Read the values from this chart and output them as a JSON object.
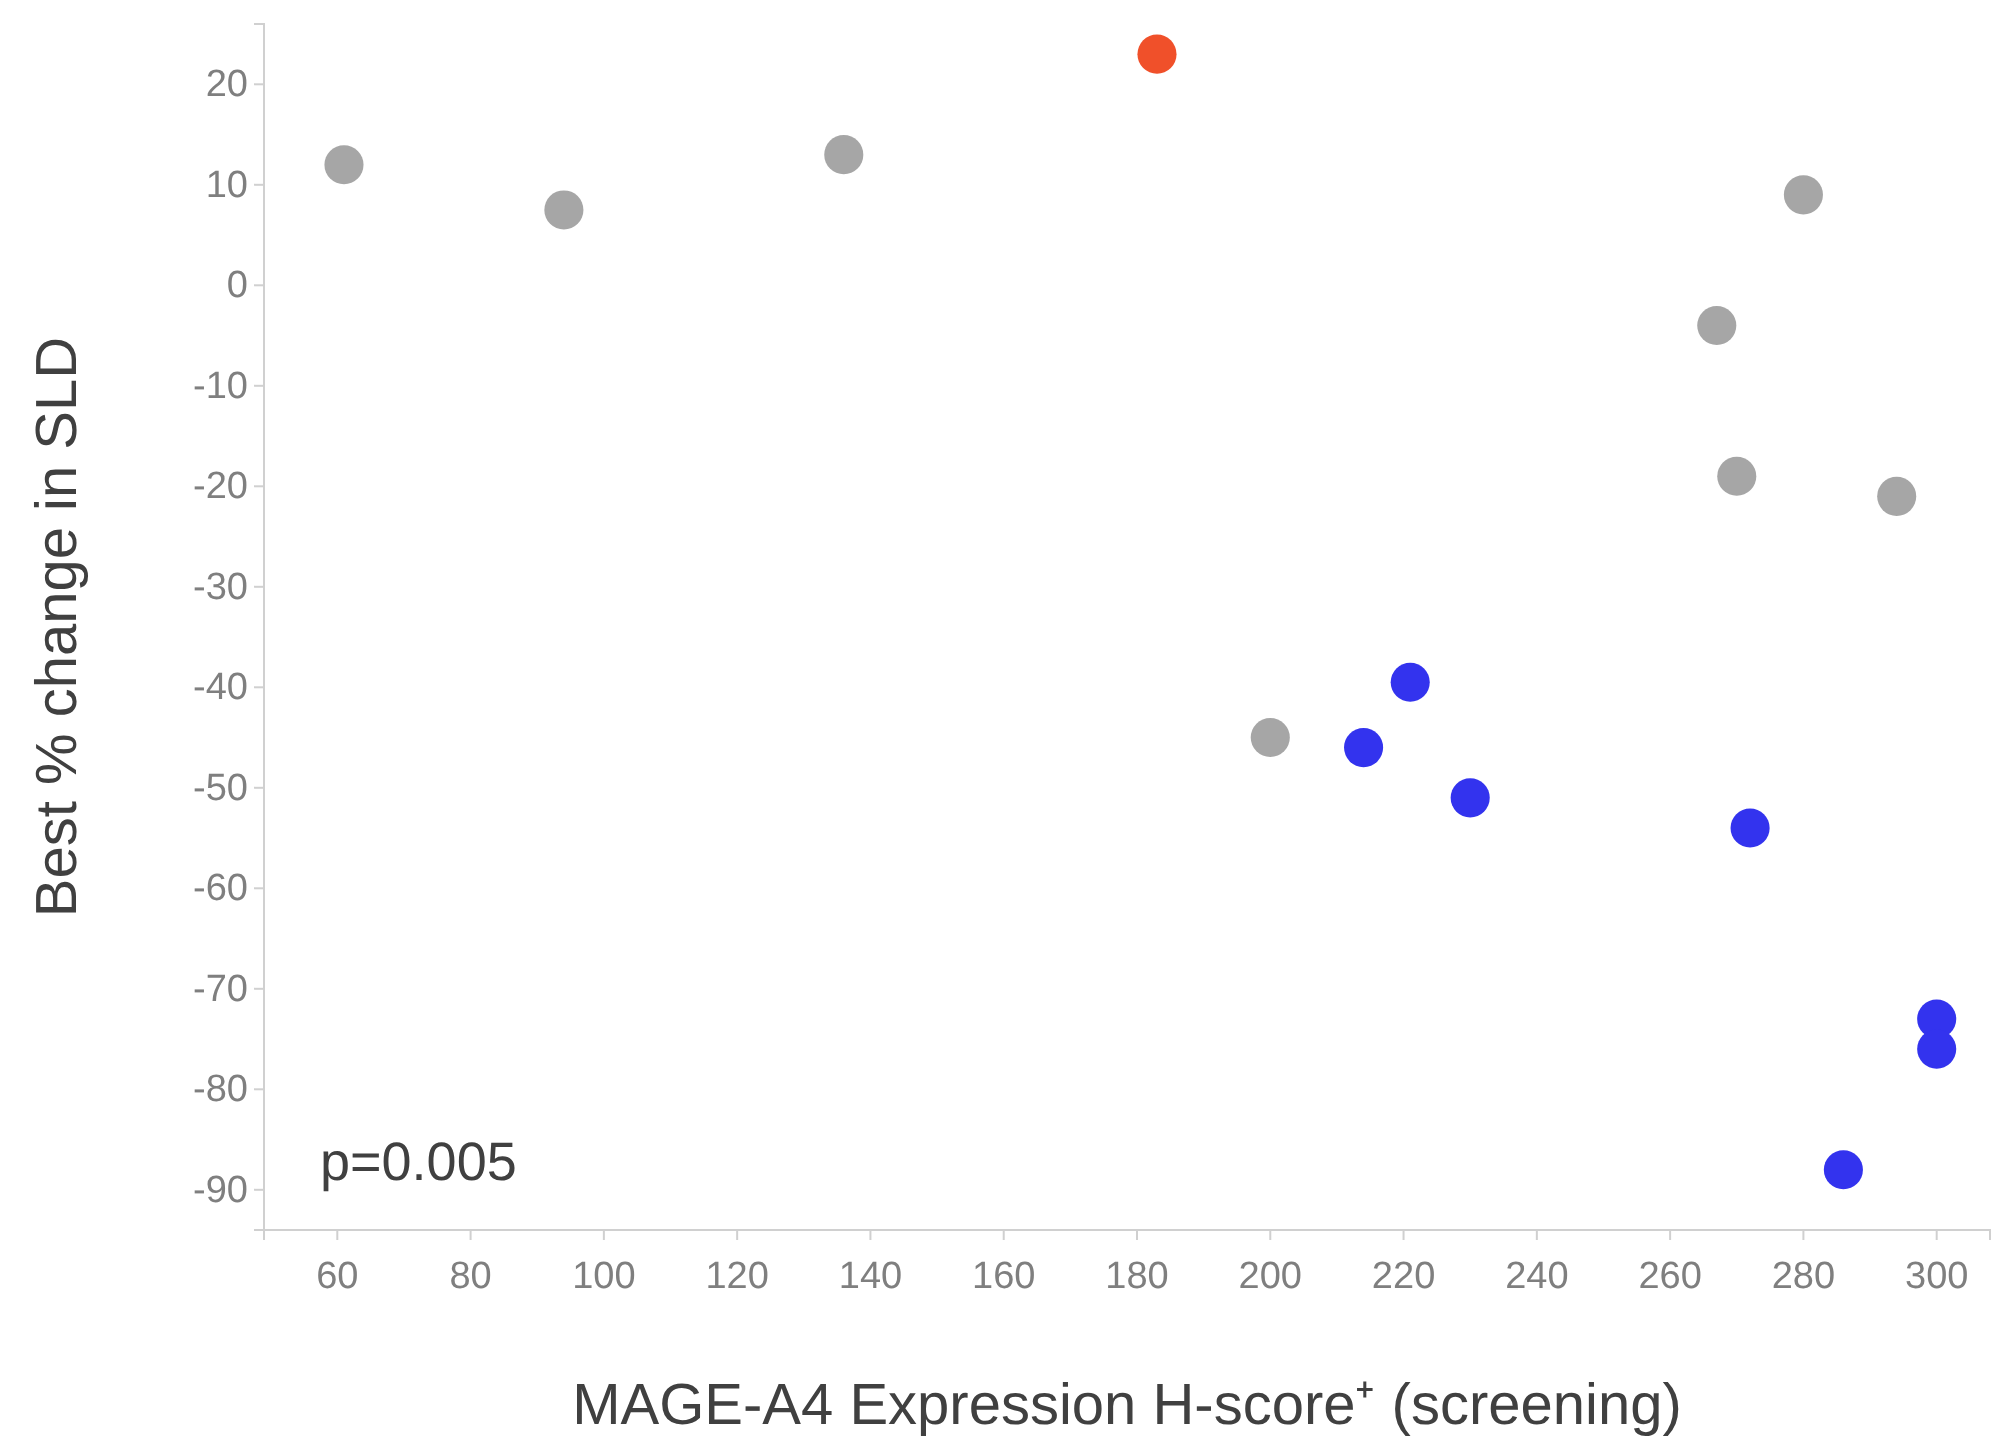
{
  "chart_data": {
    "type": "scatter",
    "xlabel": "MAGE-A4 Expression H-score⁺ (screening)",
    "ylabel": "Best % change in SLD",
    "annotations": [
      "p=0.005"
    ],
    "xlim": [
      49,
      308
    ],
    "xticks": [
      60,
      80,
      100,
      120,
      140,
      160,
      180,
      200,
      220,
      240,
      260,
      280,
      300
    ],
    "ylim": [
      -94,
      26
    ],
    "yticks": [
      20,
      10,
      0,
      -10,
      -20,
      -30,
      -40,
      -50,
      -60,
      -70,
      -80,
      -90
    ],
    "grid": false,
    "marker": "circle",
    "series": [
      {
        "color": "#a6a6a6",
        "x": [
          61,
          94,
          136,
          280,
          267,
          270,
          294,
          200
        ],
        "values": [
          12,
          7.5,
          13,
          9,
          -4,
          -19,
          -21,
          -45
        ]
      },
      {
        "color": "#f0502a",
        "x": [
          183
        ],
        "values": [
          23
        ]
      },
      {
        "color": "#3333ee",
        "x": [
          214,
          221,
          230,
          272,
          300,
          300,
          286
        ],
        "values": [
          -46,
          -39.5,
          -51,
          -54,
          -73,
          -76,
          -88
        ]
      }
    ]
  }
}
